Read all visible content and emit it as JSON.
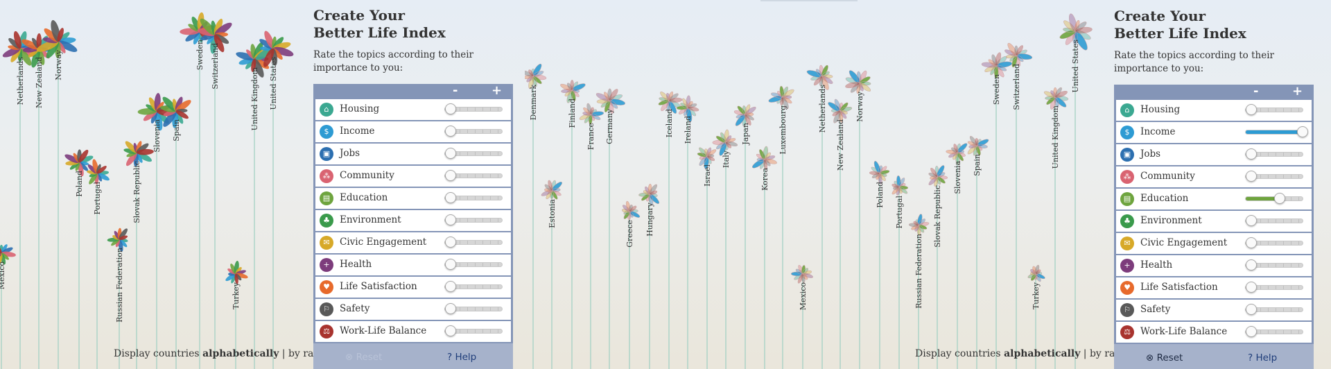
{
  "panels": [
    {
      "id": "left",
      "title_line1": "Create Your",
      "title_line2": "Better Life Index",
      "subtitle": "Rate the topics according to their importance to you:",
      "minus_label": "-",
      "plus_label": "+",
      "reset_label": "Reset",
      "help_label": "Help",
      "reset_enabled": false,
      "display_prefix": "Display countries ",
      "display_alpha": "alphabetically",
      "display_sep": " | ",
      "display_rank": "by rank",
      "topics": [
        {
          "label": "Housing",
          "color": "#3ba891",
          "value": 0.1
        },
        {
          "label": "Income",
          "color": "#2d9bd3",
          "value": 0.1
        },
        {
          "label": "Jobs",
          "color": "#2c6fb0",
          "value": 0.1
        },
        {
          "label": "Community",
          "color": "#d96371",
          "value": 0.1
        },
        {
          "label": "Education",
          "color": "#6ea43e",
          "value": 0.1
        },
        {
          "label": "Environment",
          "color": "#3a9a4b",
          "value": 0.1
        },
        {
          "label": "Civic Engagement",
          "color": "#d7a928",
          "value": 0.1
        },
        {
          "label": "Health",
          "color": "#7d3c7c",
          "value": 0.1
        },
        {
          "label": "Life Satisfaction",
          "color": "#e76a2c",
          "value": 0.1
        },
        {
          "label": "Safety",
          "color": "#595959",
          "value": 0.1
        },
        {
          "label": "Work-Life Balance",
          "color": "#a8332e",
          "value": 0.1
        }
      ],
      "countries": [
        {
          "label": "Mexico"
        },
        {
          "label": "Netherlands"
        },
        {
          "label": "New Zealand"
        },
        {
          "label": "Norway"
        },
        {
          "label": "Poland"
        },
        {
          "label": "Portugal"
        },
        {
          "label": "Russian Federation"
        },
        {
          "label": "Slovak Republic"
        },
        {
          "label": "Slovenia"
        },
        {
          "label": "Spain"
        },
        {
          "label": "Sweden"
        },
        {
          "label": "Switzerland"
        },
        {
          "label": "Turkey"
        },
        {
          "label": "United Kingdom"
        },
        {
          "label": "United States"
        }
      ]
    },
    {
      "id": "right",
      "title_line1": "Create Your",
      "title_line2": "Better Life Index",
      "subtitle": "Rate the topics according to their importance to you:",
      "minus_label": "-",
      "plus_label": "+",
      "reset_label": "Reset",
      "help_label": "Help",
      "reset_enabled": true,
      "display_prefix": "Display countries ",
      "display_alpha": "alphabetically",
      "display_sep": " | ",
      "display_rank": "by rank",
      "topics": [
        {
          "label": "Housing",
          "color": "#3ba891",
          "value": 0.1
        },
        {
          "label": "Income",
          "color": "#2d9bd3",
          "value": 1.0
        },
        {
          "label": "Jobs",
          "color": "#2c6fb0",
          "value": 0.1
        },
        {
          "label": "Community",
          "color": "#d96371",
          "value": 0.1
        },
        {
          "label": "Education",
          "color": "#6ea43e",
          "value": 0.6
        },
        {
          "label": "Environment",
          "color": "#3a9a4b",
          "value": 0.1
        },
        {
          "label": "Civic Engagement",
          "color": "#d7a928",
          "value": 0.1
        },
        {
          "label": "Health",
          "color": "#7d3c7c",
          "value": 0.1
        },
        {
          "label": "Life Satisfaction",
          "color": "#e76a2c",
          "value": 0.1
        },
        {
          "label": "Safety",
          "color": "#595959",
          "value": 0.1
        },
        {
          "label": "Work-Life Balance",
          "color": "#a8332e",
          "value": 0.1
        }
      ],
      "countries": [
        {
          "label": "Denmark"
        },
        {
          "label": "Estonia"
        },
        {
          "label": "Finland"
        },
        {
          "label": "France"
        },
        {
          "label": "Germany"
        },
        {
          "label": "Greece"
        },
        {
          "label": "Hungary"
        },
        {
          "label": "Iceland"
        },
        {
          "label": "Ireland"
        },
        {
          "label": "Israel"
        },
        {
          "label": "Italy"
        },
        {
          "label": "Japan"
        },
        {
          "label": "Korea"
        },
        {
          "label": "Luxembourg"
        },
        {
          "label": "Mexico"
        },
        {
          "label": "Netherlands"
        },
        {
          "label": "New Zealand"
        },
        {
          "label": "Norway"
        },
        {
          "label": "Poland"
        },
        {
          "label": "Portugal"
        },
        {
          "label": "Russian Federation"
        },
        {
          "label": "Slovak Republic"
        },
        {
          "label": "Slovenia"
        },
        {
          "label": "Spain"
        },
        {
          "label": "Sweden"
        },
        {
          "label": "Switzerland"
        },
        {
          "label": "Turkey"
        },
        {
          "label": "United Kingdom"
        },
        {
          "label": "United States"
        }
      ]
    }
  ]
}
